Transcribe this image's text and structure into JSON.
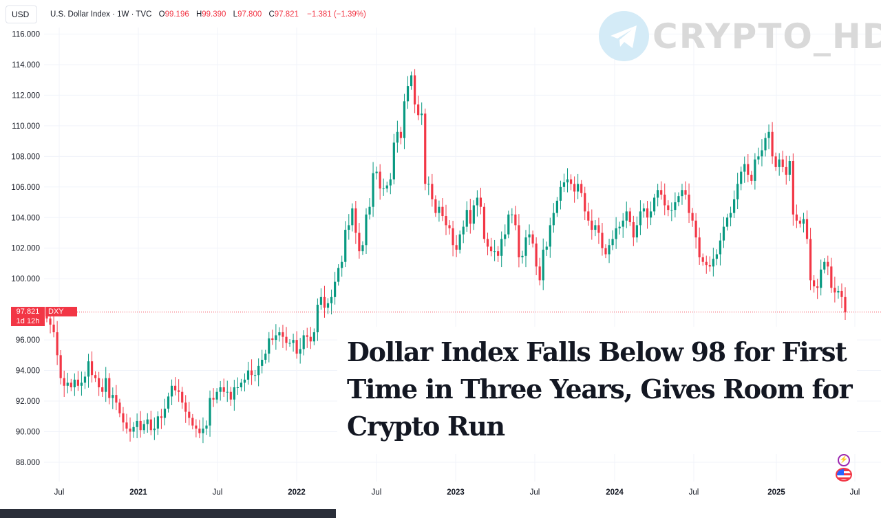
{
  "header": {
    "currency": "USD",
    "title": "U.S. Dollar Index · 1W · TVC",
    "open_label": "O",
    "open_value": "99.196",
    "high_label": "H",
    "high_value": "99.390",
    "low_label": "L",
    "low_value": "97.800",
    "close_label": "C",
    "close_value": "97.821",
    "change": "−1.381 (−1.39%)"
  },
  "watermark": {
    "text": "CRYPTO_HD",
    "icon": "telegram-icon"
  },
  "price_tag": {
    "price": "97.821",
    "countdown": "1d 12h",
    "symbol": "DXY"
  },
  "headline": "Dollar Index Falls Below 98 for First Time in Three Years, Gives Room for Crypto Run",
  "icons": {
    "bolt": "bolt-icon",
    "flag": "us-flag-icon"
  },
  "colors": {
    "up": "#089981",
    "down": "#f23645",
    "grid": "#f0f3fa",
    "axis_text": "#131722",
    "price_line": "#f23645"
  },
  "chart_data": {
    "type": "candlestick",
    "title": "U.S. Dollar Index · 1W · TVC",
    "ylim": [
      87,
      117
    ],
    "yticks": [
      "116.000",
      "114.000",
      "112.000",
      "110.000",
      "108.000",
      "106.000",
      "104.000",
      "102.000",
      "100.000",
      "96.000",
      "94.000",
      "92.000",
      "90.000",
      "88.000"
    ],
    "ytick_values": [
      116,
      114,
      112,
      110,
      108,
      106,
      104,
      102,
      100,
      96,
      94,
      92,
      90,
      88
    ],
    "xticks": [
      "Jul",
      "2021",
      "Jul",
      "2022",
      "Jul",
      "2023",
      "Jul",
      "2024",
      "Jul",
      "2025",
      "Jul"
    ],
    "xtick_dates": [
      "2020-07",
      "2021-01",
      "2021-07",
      "2022-01",
      "2022-07",
      "2023-01",
      "2023-07",
      "2024-01",
      "2024-07",
      "2025-01",
      "2025-07"
    ],
    "last_price": 97.821,
    "series": [
      {
        "closes_weekly": [
          97.4,
          97.0,
          96.5,
          95.0,
          93.5,
          93.0,
          93.2,
          92.9,
          93.4,
          93.0,
          93.2,
          93.6,
          94.6,
          93.7,
          93.5,
          92.9,
          92.6,
          93.5,
          92.2,
          92.4,
          91.9,
          91.2,
          90.6,
          90.2,
          90.0,
          90.3,
          90.7,
          90.1,
          90.5,
          90.8,
          90.1,
          90.2,
          91.0,
          90.9,
          91.5,
          92.3,
          93.0,
          92.7,
          92.6,
          91.9,
          91.3,
          90.9,
          90.4,
          90.2,
          89.9,
          90.2,
          90.4,
          92.2,
          92.1,
          92.6,
          92.9,
          92.6,
          92.6,
          92.1,
          92.9,
          92.9,
          93.2,
          93.4,
          94.0,
          93.7,
          93.7,
          94.3,
          94.7,
          95.1,
          96.1,
          96.0,
          96.3,
          96.5,
          96.2,
          95.8,
          95.8,
          96.0,
          95.1,
          95.4,
          96.3,
          96.2,
          95.9,
          96.5,
          98.3,
          98.8,
          98.1,
          98.4,
          98.8,
          99.8,
          100.7,
          101.1,
          103.2,
          103.5,
          104.6,
          103.0,
          101.8,
          102.2,
          104.2,
          104.7,
          106.9,
          107.0,
          105.9,
          105.9,
          106.1,
          106.5,
          108.9,
          109.6,
          109.2,
          111.6,
          112.6,
          113.3,
          111.4,
          110.7,
          110.8,
          106.2,
          106.2,
          105.2,
          104.3,
          104.7,
          104.1,
          103.5,
          103.3,
          102.2,
          101.9,
          102.9,
          103.4,
          104.5,
          103.6,
          104.8,
          105.3,
          104.7,
          102.6,
          102.1,
          101.8,
          101.8,
          101.5,
          102.6,
          102.9,
          104.2,
          104.2,
          103.5,
          101.4,
          101.5,
          102.7,
          102.9,
          102.3,
          100.8,
          99.9,
          101.9,
          102.1,
          103.5,
          104.3,
          105.1,
          106.0,
          106.3,
          106.5,
          106.2,
          105.7,
          106.2,
          105.6,
          104.4,
          103.8,
          103.2,
          103.5,
          103.0,
          102.0,
          101.6,
          102.2,
          102.6,
          103.3,
          103.4,
          103.8,
          104.4,
          103.7,
          102.7,
          103.5,
          104.4,
          104.6,
          104.0,
          104.4,
          105.3,
          105.8,
          105.5,
          104.8,
          104.5,
          104.5,
          105.0,
          105.4,
          105.8,
          105.5,
          104.3,
          103.8,
          102.7,
          101.4,
          101.1,
          100.9,
          100.8,
          101.3,
          101.6,
          102.5,
          103.4,
          104.0,
          104.3,
          105.2,
          106.2,
          107.0,
          107.5,
          106.8,
          106.4,
          107.8,
          108.0,
          108.4,
          109.2,
          109.6,
          108.0,
          107.3,
          107.8,
          107.3,
          106.8,
          107.7,
          104.2,
          103.8,
          103.6,
          103.9,
          102.6,
          99.9,
          99.5,
          99.4,
          100.6,
          101.1,
          100.8,
          99.4,
          99.1,
          99.2,
          98.8,
          97.8
        ]
      }
    ]
  }
}
